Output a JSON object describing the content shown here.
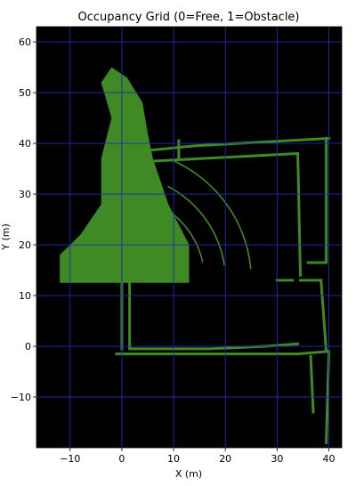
{
  "chart_data": {
    "type": "heatmap",
    "title": "Occupancy Grid (0=Free, 1=Obstacle)",
    "xlabel": "X (m)",
    "ylabel": "Y (m)",
    "xlim": [
      -16.5,
      42.5
    ],
    "ylim": [
      -20,
      63
    ],
    "xticks": [
      -10,
      0,
      10,
      20,
      30,
      40
    ],
    "yticks": [
      -10,
      0,
      10,
      20,
      30,
      40,
      50,
      60
    ],
    "xtick_labels": [
      "−10",
      "0",
      "10",
      "20",
      "30",
      "40"
    ],
    "ytick_labels": [
      "−10",
      "0",
      "10",
      "20",
      "30",
      "40",
      "50",
      "60"
    ],
    "grid": true,
    "colors": {
      "free": "#000000",
      "obstacle": "#3f8a24",
      "grid": "#1f2bb0"
    },
    "values_legend": {
      "free": 0,
      "obstacle": 1
    },
    "obstacle_regions": [
      {
        "kind": "fan",
        "points": [
          [
            -1,
            12.5
          ],
          [
            -12,
            12.5
          ],
          [
            -12,
            18
          ],
          [
            -8,
            22
          ],
          [
            -4,
            28
          ],
          [
            -4,
            37
          ],
          [
            -2,
            45
          ],
          [
            -4,
            52
          ],
          [
            -2,
            55
          ],
          [
            1,
            53
          ],
          [
            4,
            48
          ],
          [
            5,
            42
          ],
          [
            6,
            37
          ],
          [
            9,
            28
          ],
          [
            13,
            20
          ],
          [
            13,
            12.5
          ]
        ]
      },
      {
        "kind": "wall",
        "points": [
          [
            4,
            38.5
          ],
          [
            14,
            39.5
          ],
          [
            40,
            41
          ]
        ]
      },
      {
        "kind": "wall",
        "points": [
          [
            6,
            36.5
          ],
          [
            34,
            38
          ]
        ]
      },
      {
        "kind": "wall",
        "points": [
          [
            11,
            40.5
          ],
          [
            11,
            37
          ]
        ]
      },
      {
        "kind": "wall",
        "points": [
          [
            34,
            38
          ],
          [
            34.5,
            14
          ]
        ]
      },
      {
        "kind": "wall",
        "points": [
          [
            39.5,
            41
          ],
          [
            39.5,
            16.5
          ]
        ]
      },
      {
        "kind": "wall",
        "points": [
          [
            36,
            16.5
          ],
          [
            39.5,
            16.5
          ]
        ]
      },
      {
        "kind": "wall",
        "points": [
          [
            34.5,
            13
          ],
          [
            38.5,
            13
          ]
        ]
      },
      {
        "kind": "wall",
        "points": [
          [
            38.5,
            13
          ],
          [
            39.5,
            -1
          ]
        ]
      },
      {
        "kind": "wall",
        "points": [
          [
            1.5,
            13
          ],
          [
            1.5,
            0
          ]
        ]
      },
      {
        "kind": "wall",
        "points": [
          [
            1.5,
            -0.5
          ],
          [
            17,
            -0.5
          ],
          [
            28,
            0
          ],
          [
            34,
            0.5
          ]
        ]
      },
      {
        "kind": "wall",
        "points": [
          [
            -1,
            -1.5
          ],
          [
            15,
            -1.5
          ],
          [
            26,
            -1.5
          ],
          [
            34,
            -1.5
          ],
          [
            40,
            -1
          ]
        ]
      },
      {
        "kind": "wall",
        "points": [
          [
            0,
            -0.5
          ],
          [
            0,
            12.5
          ]
        ]
      },
      {
        "kind": "wall",
        "points": [
          [
            36.5,
            -2
          ],
          [
            37,
            -13
          ]
        ]
      },
      {
        "kind": "wall",
        "points": [
          [
            40,
            -1.5
          ],
          [
            39.5,
            -19
          ]
        ]
      },
      {
        "kind": "wall",
        "points": [
          [
            30,
            13
          ],
          [
            33,
            13
          ]
        ]
      }
    ],
    "obstacle_arcs": [
      {
        "center": [
          -1,
          13
        ],
        "radius": 26,
        "start_deg": 5,
        "end_deg": 65
      },
      {
        "center": [
          -1,
          13
        ],
        "radius": 21,
        "start_deg": 8,
        "end_deg": 62
      },
      {
        "center": [
          -1,
          13
        ],
        "radius": 17,
        "start_deg": 12,
        "end_deg": 58
      }
    ]
  }
}
